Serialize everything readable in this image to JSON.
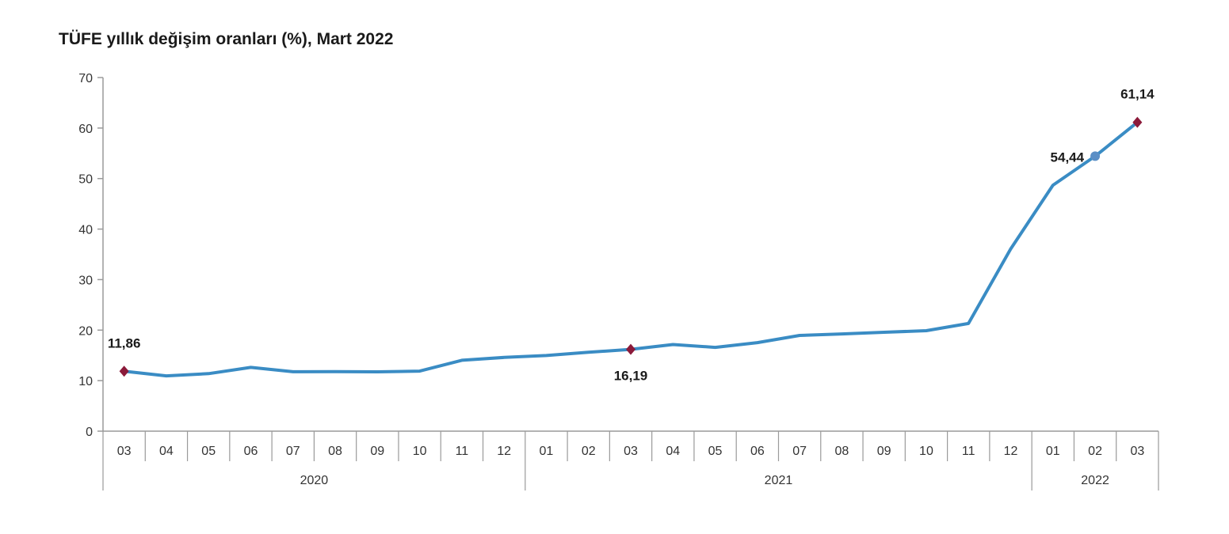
{
  "chart_data": {
    "type": "line",
    "title": "TÜFE yıllık değişim oranları (%), Mart 2022",
    "xlabel": "",
    "ylabel": "",
    "ylim": [
      0,
      70
    ],
    "yticks": [
      0,
      10,
      20,
      30,
      40,
      50,
      60,
      70
    ],
    "grid": false,
    "legend": "none",
    "categories": [
      "03",
      "04",
      "05",
      "06",
      "07",
      "08",
      "09",
      "10",
      "11",
      "12",
      "01",
      "02",
      "03",
      "04",
      "05",
      "06",
      "07",
      "08",
      "09",
      "10",
      "11",
      "12",
      "01",
      "02",
      "03"
    ],
    "years": [
      {
        "label": "2020",
        "start": 0,
        "count": 10
      },
      {
        "label": "2021",
        "start": 10,
        "count": 12
      },
      {
        "label": "2022",
        "start": 22,
        "count": 3
      }
    ],
    "series": [
      {
        "values": [
          11.86,
          10.94,
          11.39,
          12.62,
          11.76,
          11.77,
          11.75,
          11.89,
          14.03,
          14.6,
          14.97,
          15.61,
          16.19,
          17.14,
          16.59,
          17.53,
          18.95,
          19.25,
          19.58,
          19.89,
          21.31,
          36.08,
          48.69,
          54.44,
          61.14
        ]
      }
    ],
    "data_labels": [
      {
        "index": 0,
        "text": "11,86",
        "position": "above"
      },
      {
        "index": 12,
        "text": "16,19",
        "position": "below"
      },
      {
        "index": 23,
        "text": "54,44",
        "position": "left"
      },
      {
        "index": 24,
        "text": "61,14",
        "position": "above"
      }
    ],
    "colors": {
      "line": "#3a8cc4",
      "marker": "#8b1a3a",
      "marker_alt": "#5b8fc6",
      "axis": "#9a9a9a",
      "text": "#333333"
    }
  }
}
